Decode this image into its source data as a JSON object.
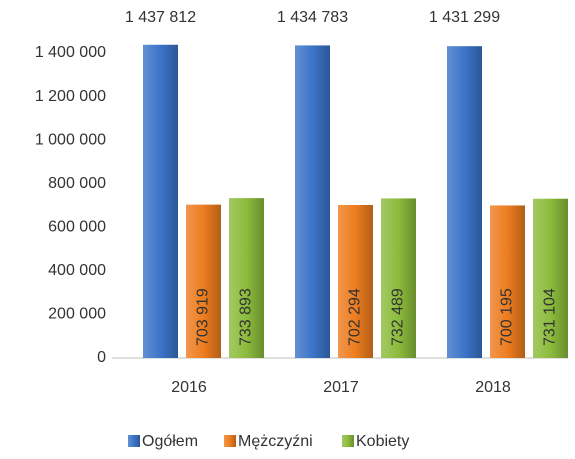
{
  "chart_data": {
    "type": "bar",
    "categories": [
      "2016",
      "2017",
      "2018"
    ],
    "series": [
      {
        "name": "Ogółem",
        "color": "#3c74c8",
        "values": [
          1437812,
          1434783,
          1431299
        ],
        "value_labels": [
          "1 437 812",
          "1 434 783",
          "1 431 299"
        ]
      },
      {
        "name": "Mężczyźni",
        "color": "#ed7d1f",
        "values": [
          703919,
          702294,
          700195
        ],
        "value_labels": [
          "703 919",
          "702 294",
          "700 195"
        ]
      },
      {
        "name": "Kobiety",
        "color": "#8cbc3c",
        "values": [
          733893,
          732489,
          731104
        ],
        "value_labels": [
          "733 893",
          "732 489",
          "731 104"
        ]
      }
    ],
    "ylim": [
      0,
      1400000
    ],
    "yticks": [
      0,
      {
        "value": 200000,
        "label": "200 000"
      },
      {
        "value": 400000,
        "label": "400 000"
      },
      {
        "value": 600000,
        "label": "600 000"
      },
      {
        "value": 800000,
        "label": "800 000"
      },
      {
        "value": 1000000,
        "label": "1 000 000"
      },
      {
        "value": 1200000,
        "label": "1 200 000"
      },
      {
        "value": 1400000,
        "label": "1 400 000"
      }
    ],
    "grid": false
  }
}
